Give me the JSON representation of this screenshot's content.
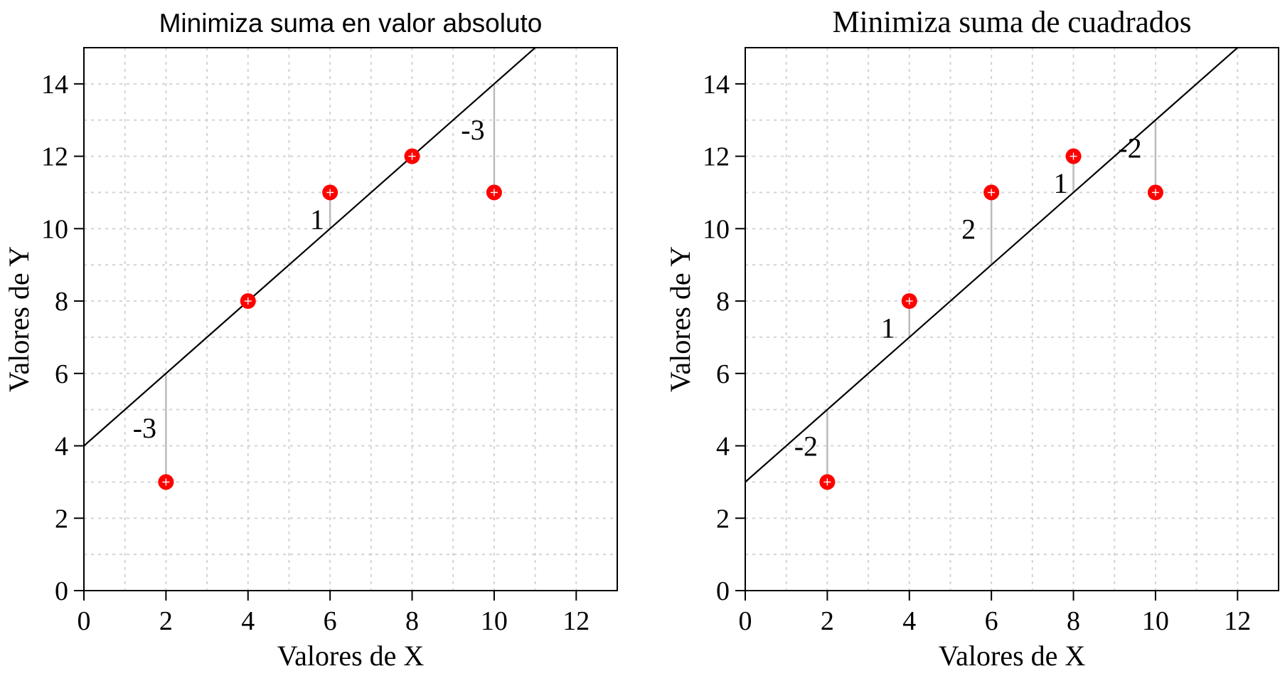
{
  "chart_data": [
    {
      "type": "scatter",
      "title": "Minimiza suma en valor absoluto",
      "xlabel": "Valores de X",
      "ylabel": "Valores de Y",
      "xlim": [
        0,
        13
      ],
      "ylim": [
        0,
        15
      ],
      "xticks": [
        0,
        2,
        4,
        6,
        8,
        10,
        12
      ],
      "yticks": [
        0,
        2,
        4,
        6,
        8,
        10,
        12,
        14
      ],
      "xtick_labels": [
        "0",
        "2",
        "4",
        "6",
        "8",
        "10",
        "12"
      ],
      "ytick_labels": [
        "0",
        "2",
        "4",
        "6",
        "8",
        "10",
        "12",
        "14"
      ],
      "grid": true,
      "points": {
        "x": [
          2,
          4,
          6,
          8,
          10
        ],
        "y": [
          3,
          8,
          11,
          12,
          11
        ]
      },
      "line": {
        "intercept": 4,
        "slope": 1
      },
      "residual_labels": [
        "-3",
        "",
        "1",
        "",
        "-3"
      ],
      "point_color": "#ff0000",
      "line_color": "#000000",
      "residual_color": "#bbbbbb",
      "title_font": "sans"
    },
    {
      "type": "scatter",
      "title": "Minimiza suma de cuadrados",
      "xlabel": "Valores de X",
      "ylabel": "Valores de Y",
      "xlim": [
        0,
        13
      ],
      "ylim": [
        0,
        15
      ],
      "xticks": [
        0,
        2,
        4,
        6,
        8,
        10,
        12
      ],
      "yticks": [
        0,
        2,
        4,
        6,
        8,
        10,
        12,
        14
      ],
      "xtick_labels": [
        "0",
        "2",
        "4",
        "6",
        "8",
        "10",
        "12"
      ],
      "ytick_labels": [
        "0",
        "2",
        "4",
        "6",
        "8",
        "10",
        "12",
        "14"
      ],
      "grid": true,
      "points": {
        "x": [
          2,
          4,
          6,
          8,
          10
        ],
        "y": [
          3,
          8,
          11,
          12,
          11
        ]
      },
      "line": {
        "intercept": 3,
        "slope": 1
      },
      "residual_labels": [
        "-2",
        "1",
        "2",
        "1",
        "-2"
      ],
      "point_color": "#ff0000",
      "line_color": "#000000",
      "residual_color": "#bbbbbb",
      "title_font": "serif"
    }
  ]
}
